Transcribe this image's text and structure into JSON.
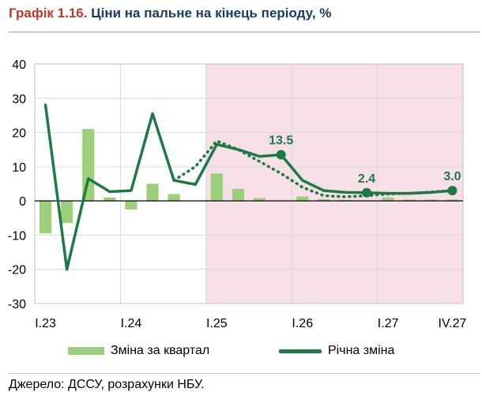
{
  "title": {
    "number": "Графік 1.16.",
    "text": "Ціни на пальне на кінець періоду, %"
  },
  "source": "Джерело: ДССУ, розрахунки НБУ.",
  "colors": {
    "bar": "#9ccf7a",
    "line": "#1e7a45",
    "forecast_shade": "#f6dfe7",
    "grid": "#d9d9d9"
  },
  "chart_data": {
    "type": "bar",
    "title": "Ціни на пальне на кінець періоду, %",
    "xlabel": "",
    "ylabel": "",
    "ylim": [
      -30,
      40
    ],
    "yticks": [
      "40",
      "30",
      "20",
      "10",
      "0",
      "-10",
      "-20",
      "-30"
    ],
    "grid": true,
    "legend_position": "bottom",
    "categories": [
      "I.23",
      "II.23",
      "III.23",
      "IV.23",
      "I.24",
      "II.24",
      "III.24",
      "IV.24",
      "I.25",
      "II.25",
      "III.25",
      "IV.25",
      "I.26",
      "II.26",
      "III.26",
      "IV.26",
      "I.27",
      "II.27",
      "III.27",
      "IV.27"
    ],
    "x_tick_labels": [
      "I.23",
      "I.24",
      "I.25",
      "I.26",
      "I.27",
      "IV.27"
    ],
    "forecast_start": "I.25",
    "series": [
      {
        "name": "Зміна за квартал",
        "type": "bar",
        "values": [
          -9.5,
          -6.5,
          21.0,
          1.0,
          -2.5,
          5.0,
          2.0,
          0.0,
          8.0,
          3.5,
          0.8,
          0.0,
          1.3,
          0.5,
          0.3,
          0.0,
          1.0,
          0.4,
          0.4,
          0.4
        ]
      },
      {
        "name": "Річна зміна",
        "type": "line",
        "values": [
          28.0,
          -20.0,
          6.5,
          2.7,
          3.0,
          25.5,
          6.0,
          4.8,
          16.5,
          15.0,
          13.0,
          13.5,
          6.0,
          3.0,
          2.5,
          2.4,
          2.2,
          2.2,
          2.5,
          3.0
        ]
      },
      {
        "name": "",
        "type": "dotted-line",
        "start_index": 6,
        "values": [
          null,
          null,
          null,
          null,
          null,
          null,
          6.0,
          10.0,
          17.5,
          15.0,
          11.5,
          8.0,
          4.0,
          1.5,
          1.2,
          1.5,
          2.0,
          2.2,
          2.6,
          3.0
        ]
      }
    ],
    "annotations": [
      {
        "index": 11,
        "value": 13.5,
        "label": "13.5"
      },
      {
        "index": 15,
        "value": 2.4,
        "label": "2.4"
      },
      {
        "index": 19,
        "value": 3.0,
        "label": "3.0"
      }
    ]
  }
}
